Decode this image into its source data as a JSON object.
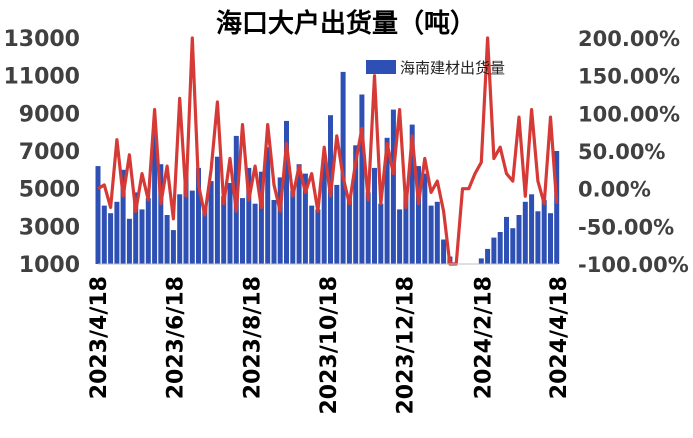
{
  "chart_data": {
    "type": "bar",
    "title": "海口大户出货量（吨）",
    "xlabel": "",
    "ylabel": "",
    "x_tick_labels": [
      "2023/4/18",
      "2023/6/18",
      "2023/8/18",
      "2023/10/18",
      "2023/12/18",
      "2024/2/18",
      "2024/4/18"
    ],
    "x_range": [
      "2023-04-18",
      "2024-04-18"
    ],
    "left_axis": {
      "ylim": [
        1000,
        13000
      ],
      "ticks": [
        "1000",
        "3000",
        "5000",
        "7000",
        "9000",
        "11000",
        "13000"
      ]
    },
    "right_axis": {
      "ylim": [
        -1.0,
        2.0
      ],
      "ticks": [
        "-100.00%",
        "-50.00%",
        "0.00%",
        "50.00%",
        "100.00%",
        "150.00%",
        "200.00%"
      ]
    },
    "legend": {
      "placement": "top-right",
      "entries": [
        "海南建材出货量"
      ]
    },
    "grid": false,
    "colors": {
      "bars": "#2e4fb3",
      "line": "#d63a36"
    },
    "series": [
      {
        "name": "海南建材出货量",
        "kind": "bar",
        "axis": "left",
        "x": [
          "2023-04-18",
          "2023-04-23",
          "2023-04-28",
          "2023-05-03",
          "2023-05-08",
          "2023-05-13",
          "2023-05-18",
          "2023-05-23",
          "2023-05-28",
          "2023-06-02",
          "2023-06-07",
          "2023-06-12",
          "2023-06-17",
          "2023-06-22",
          "2023-06-27",
          "2023-07-02",
          "2023-07-07",
          "2023-07-12",
          "2023-07-17",
          "2023-07-22",
          "2023-07-27",
          "2023-08-01",
          "2023-08-06",
          "2023-08-11",
          "2023-08-16",
          "2023-08-21",
          "2023-08-26",
          "2023-08-31",
          "2023-09-05",
          "2023-09-10",
          "2023-09-15",
          "2023-09-20",
          "2023-09-25",
          "2023-09-30",
          "2023-10-05",
          "2023-10-10",
          "2023-10-15",
          "2023-10-20",
          "2023-10-25",
          "2023-10-30",
          "2023-11-04",
          "2023-11-09",
          "2023-11-14",
          "2023-11-19",
          "2023-11-24",
          "2023-11-29",
          "2023-12-04",
          "2023-12-09",
          "2023-12-14",
          "2023-12-19",
          "2023-12-24",
          "2023-12-29",
          "2024-01-03",
          "2024-01-08",
          "2024-01-13",
          "2024-01-18",
          "2024-01-23",
          "2024-01-28",
          "2024-02-02",
          "2024-02-07",
          "2024-02-12",
          "2024-02-17",
          "2024-02-22",
          "2024-02-27",
          "2024-03-03",
          "2024-03-08",
          "2024-03-13",
          "2024-03-18",
          "2024-03-23",
          "2024-03-28",
          "2024-04-02",
          "2024-04-07",
          "2024-04-12",
          "2024-04-17"
        ],
        "values": [
          6200,
          4100,
          3700,
          4300,
          6000,
          3400,
          4800,
          3900,
          4500,
          7900,
          6300,
          3600,
          2800,
          4700,
          5900,
          4900,
          6100,
          4100,
          5400,
          6700,
          4600,
          5300,
          7800,
          4500,
          6100,
          4200,
          5900,
          7200,
          4400,
          5600,
          8600,
          4900,
          6300,
          5800,
          4100,
          3900,
          6600,
          8900,
          5200,
          11200,
          4600,
          7300,
          10000,
          4800,
          6100,
          4200,
          7700,
          9200,
          3900,
          4700,
          8400,
          6200,
          5800,
          4100,
          4300,
          2300,
          1400,
          1000,
          1000,
          1000,
          1000,
          1300,
          1800,
          2400,
          2700,
          3500,
          2900,
          3600,
          4300,
          4700,
          3800,
          4400,
          3700,
          7000
        ]
      },
      {
        "name": "",
        "kind": "line",
        "axis": "right",
        "x": [
          "2023-04-18",
          "2023-04-23",
          "2023-04-28",
          "2023-05-03",
          "2023-05-08",
          "2023-05-13",
          "2023-05-18",
          "2023-05-23",
          "2023-05-28",
          "2023-06-02",
          "2023-06-07",
          "2023-06-12",
          "2023-06-17",
          "2023-06-22",
          "2023-06-27",
          "2023-07-02",
          "2023-07-07",
          "2023-07-12",
          "2023-07-17",
          "2023-07-22",
          "2023-07-27",
          "2023-08-01",
          "2023-08-06",
          "2023-08-11",
          "2023-08-16",
          "2023-08-21",
          "2023-08-26",
          "2023-08-31",
          "2023-09-05",
          "2023-09-10",
          "2023-09-15",
          "2023-09-20",
          "2023-09-25",
          "2023-09-30",
          "2023-10-05",
          "2023-10-10",
          "2023-10-15",
          "2023-10-20",
          "2023-10-25",
          "2023-10-30",
          "2023-11-04",
          "2023-11-09",
          "2023-11-14",
          "2023-11-19",
          "2023-11-24",
          "2023-11-29",
          "2023-12-04",
          "2023-12-09",
          "2023-12-14",
          "2023-12-19",
          "2023-12-24",
          "2023-12-29",
          "2024-01-03",
          "2024-01-08",
          "2024-01-13",
          "2024-01-18",
          "2024-01-23",
          "2024-01-28",
          "2024-02-02",
          "2024-02-07",
          "2024-02-12",
          "2024-02-17",
          "2024-02-22",
          "2024-02-27",
          "2024-03-03",
          "2024-03-08",
          "2024-03-13",
          "2024-03-18",
          "2024-03-23",
          "2024-03-28",
          "2024-04-02",
          "2024-04-07",
          "2024-04-12",
          "2024-04-17"
        ],
        "values": [
          0.0,
          0.05,
          -0.25,
          0.65,
          -0.1,
          0.45,
          -0.3,
          0.2,
          -0.15,
          1.05,
          -0.2,
          0.3,
          -0.4,
          1.2,
          -0.1,
          2.0,
          0.05,
          -0.35,
          0.25,
          1.15,
          -0.2,
          0.4,
          -0.3,
          0.85,
          -0.15,
          0.3,
          -0.25,
          0.85,
          0.05,
          -0.3,
          0.6,
          -0.1,
          0.3,
          -0.05,
          0.2,
          -0.3,
          0.55,
          -0.1,
          0.7,
          0.15,
          -0.2,
          0.35,
          0.8,
          -0.15,
          1.5,
          -0.2,
          0.6,
          0.2,
          1.05,
          -0.25,
          0.7,
          -0.2,
          0.4,
          -0.05,
          0.1,
          -0.3,
          -1.0,
          -1.0,
          0.0,
          0.0,
          0.2,
          0.35,
          2.0,
          0.4,
          0.55,
          0.2,
          0.1,
          0.95,
          -0.1,
          1.05,
          0.1,
          -0.2,
          0.95,
          -0.2
        ]
      }
    ]
  }
}
